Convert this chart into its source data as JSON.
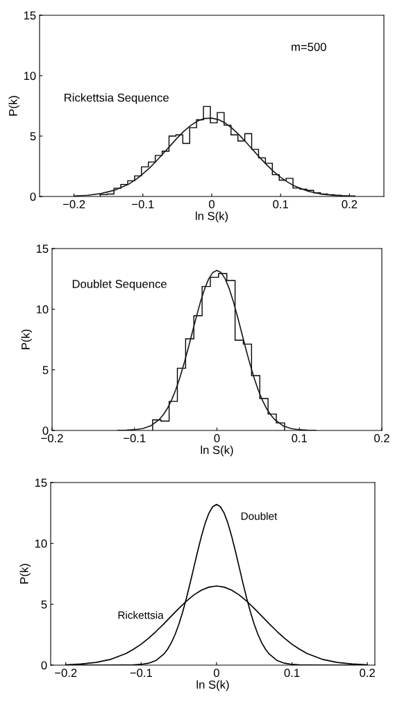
{
  "chart_data": [
    {
      "type": "histogram",
      "xlabel": "ln S(k)",
      "ylabel": "P(k)",
      "xlim": [
        -0.25,
        0.25
      ],
      "ylim": [
        0,
        15
      ],
      "xticks": [
        -0.2,
        -0.1,
        0,
        0.1,
        0.2
      ],
      "yticks": [
        0,
        5,
        10,
        15
      ],
      "grid": false,
      "legend": false,
      "annotations": [
        "m=500",
        "Rickettsia Sequence"
      ],
      "series": [
        {
          "color": "#000000",
          "bins": [
            -0.162,
            -0.152,
            -0.142,
            -0.132,
            -0.122,
            -0.112,
            -0.102,
            -0.092,
            -0.082,
            -0.072,
            -0.062,
            -0.052,
            -0.042,
            -0.032,
            -0.022,
            -0.012,
            -0.002,
            0.008,
            0.018,
            0.028,
            0.038,
            0.048,
            0.058,
            0.068,
            0.078,
            0.088,
            0.098,
            0.108,
            0.118,
            0.128,
            0.138,
            0.148,
            0.158,
            0.168,
            0.178,
            0.188,
            0.198,
            0.208
          ],
          "values": [
            0.15,
            0.2,
            0.68,
            1.0,
            1.3,
            1.7,
            2.45,
            2.85,
            3.4,
            3.75,
            5.0,
            5.1,
            4.4,
            5.7,
            6.35,
            7.45,
            6.1,
            6.95,
            5.9,
            5.1,
            4.6,
            5.2,
            3.9,
            3.2,
            2.75,
            1.8,
            1.35,
            1.5,
            0.7,
            0.6,
            0.5,
            0.3,
            0.2,
            0.15,
            0.1,
            0.05,
            0.05
          ]
        },
        {
          "type": "line",
          "color": "#1a1a1a",
          "x": [
            -0.2,
            -0.18,
            -0.16,
            -0.14,
            -0.12,
            -0.11,
            -0.1,
            -0.09,
            -0.08,
            -0.07,
            -0.06,
            -0.05,
            -0.04,
            -0.03,
            -0.02,
            -0.01,
            0,
            0.01,
            0.02,
            0.03,
            0.04,
            0.05,
            0.06,
            0.07,
            0.08,
            0.09,
            0.1,
            0.11,
            0.12,
            0.14,
            0.16,
            0.18,
            0.2
          ],
          "values": [
            0.04,
            0.1,
            0.25,
            0.54,
            1.04,
            1.42,
            1.87,
            2.38,
            2.96,
            3.59,
            4.22,
            4.85,
            5.42,
            5.9,
            6.26,
            6.46,
            6.49,
            6.36,
            6.06,
            5.63,
            5.09,
            4.48,
            3.84,
            3.21,
            2.61,
            2.06,
            1.59,
            1.2,
            0.88,
            0.43,
            0.19,
            0.08,
            0.03
          ]
        }
      ]
    },
    {
      "type": "histogram",
      "xlabel": "ln S(k)",
      "ylabel": "P(k)",
      "xlim": [
        -0.2,
        0.2
      ],
      "ylim": [
        0,
        15
      ],
      "xticks": [
        -0.2,
        -0.1,
        0,
        0.1,
        0.2
      ],
      "yticks": [
        0,
        5,
        10,
        15
      ],
      "grid": false,
      "legend": false,
      "annotations": [
        "Doublet Sequence"
      ],
      "series": [
        {
          "color": "#000000",
          "bins": [
            -0.078,
            -0.068,
            -0.058,
            -0.048,
            -0.038,
            -0.028,
            -0.018,
            -0.008,
            0.002,
            0.012,
            0.022,
            0.032,
            0.042,
            0.052,
            0.062,
            0.072,
            0.082
          ],
          "values": [
            0.87,
            0.77,
            2.4,
            5.13,
            7.56,
            9.46,
            11.87,
            12.63,
            12.94,
            12.37,
            7.44,
            7.12,
            4.52,
            2.63,
            1.35,
            0.62
          ]
        },
        {
          "type": "line",
          "color": "#1a1a1a",
          "x": [
            -0.12,
            -0.11,
            -0.1,
            -0.09,
            -0.08,
            -0.07,
            -0.065,
            -0.06,
            -0.055,
            -0.05,
            -0.045,
            -0.04,
            -0.035,
            -0.03,
            -0.025,
            -0.02,
            -0.015,
            -0.01,
            -0.005,
            0,
            0.005,
            0.01,
            0.015,
            0.02,
            0.025,
            0.03,
            0.035,
            0.04,
            0.045,
            0.05,
            0.055,
            0.06,
            0.065,
            0.07,
            0.08,
            0.09,
            0.1,
            0.11,
            0.12
          ],
          "values": [
            0.01,
            0.02,
            0.06,
            0.16,
            0.39,
            0.9,
            1.3,
            1.83,
            2.51,
            3.35,
            4.35,
            5.49,
            6.74,
            8.06,
            9.37,
            10.6,
            11.67,
            12.5,
            13.02,
            13.2,
            13.02,
            12.5,
            11.67,
            10.6,
            9.37,
            8.06,
            6.74,
            5.49,
            4.35,
            3.35,
            2.51,
            1.83,
            1.3,
            0.9,
            0.39,
            0.16,
            0.06,
            0.02,
            0.01
          ]
        }
      ]
    },
    {
      "type": "line",
      "xlabel": "ln S(k)",
      "ylabel": "P(k)",
      "xlim": [
        -0.22,
        0.21
      ],
      "ylim": [
        0,
        15
      ],
      "xticks": [
        -0.2,
        -0.1,
        0,
        0.1,
        0.2
      ],
      "yticks": [
        0,
        5,
        10,
        15
      ],
      "grid": false,
      "legend": false,
      "series": [
        {
          "name": "Doublet",
          "color": "#000000",
          "x": [
            -0.2,
            -0.15,
            -0.12,
            -0.11,
            -0.1,
            -0.09,
            -0.08,
            -0.07,
            -0.065,
            -0.06,
            -0.055,
            -0.05,
            -0.045,
            -0.04,
            -0.035,
            -0.03,
            -0.025,
            -0.02,
            -0.015,
            -0.01,
            -0.005,
            0,
            0.005,
            0.01,
            0.015,
            0.02,
            0.025,
            0.03,
            0.035,
            0.04,
            0.045,
            0.05,
            0.055,
            0.06,
            0.065,
            0.07,
            0.08,
            0.09,
            0.1,
            0.11,
            0.12,
            0.15,
            0.2
          ],
          "values": [
            0.0,
            0.0,
            0.01,
            0.02,
            0.06,
            0.16,
            0.39,
            0.9,
            1.3,
            1.83,
            2.51,
            3.35,
            4.35,
            5.49,
            6.74,
            8.06,
            9.37,
            10.6,
            11.67,
            12.5,
            13.02,
            13.2,
            13.02,
            12.5,
            11.67,
            10.6,
            9.37,
            8.06,
            6.74,
            5.49,
            4.35,
            3.35,
            2.51,
            1.83,
            1.3,
            0.9,
            0.39,
            0.16,
            0.06,
            0.02,
            0.01,
            0.0,
            0.0
          ]
        },
        {
          "name": "Rickettsia",
          "color": "#000000",
          "x": [
            -0.2,
            -0.18,
            -0.16,
            -0.14,
            -0.12,
            -0.11,
            -0.1,
            -0.09,
            -0.08,
            -0.07,
            -0.06,
            -0.05,
            -0.04,
            -0.03,
            -0.02,
            -0.01,
            0,
            0.01,
            0.02,
            0.03,
            0.04,
            0.05,
            0.06,
            0.07,
            0.08,
            0.09,
            0.1,
            0.11,
            0.12,
            0.14,
            0.16,
            0.18,
            0.2
          ],
          "values": [
            0.03,
            0.09,
            0.22,
            0.48,
            0.96,
            1.31,
            1.72,
            2.22,
            2.78,
            3.39,
            4.03,
            4.66,
            5.26,
            5.77,
            6.16,
            6.41,
            6.5,
            6.41,
            6.16,
            5.77,
            5.26,
            4.66,
            4.03,
            3.39,
            2.78,
            2.22,
            1.72,
            1.31,
            0.96,
            0.48,
            0.22,
            0.09,
            0.03
          ]
        }
      ]
    }
  ]
}
